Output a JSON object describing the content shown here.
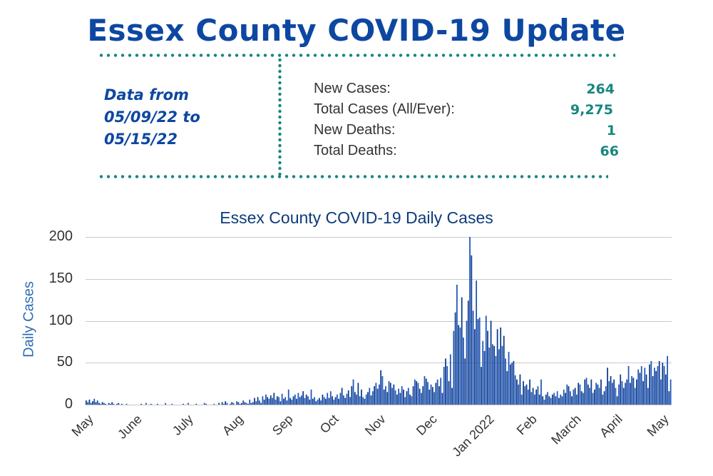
{
  "header": {
    "title": "Essex County COVID-19 Update"
  },
  "date_range": {
    "line1": "Data from",
    "line2": "05/09/22 to",
    "line3": "05/15/22"
  },
  "stats": [
    {
      "label": "New Cases:",
      "value": "264"
    },
    {
      "label": "Total Cases (All/Ever):",
      "value": "9,275"
    },
    {
      "label": "New Deaths:",
      "value": "1"
    },
    {
      "label": "Total Deaths:",
      "value": "66"
    }
  ],
  "colors": {
    "title": "#0d47a1",
    "accent": "#17877f",
    "bar": "#1f56b8",
    "bar_dark": "#0d3b8c"
  },
  "chart_data": {
    "type": "bar",
    "title": "Essex County COVID-19 Daily Cases",
    "xlabel": "",
    "ylabel": "Daily Cases",
    "ylim": [
      0,
      200
    ],
    "yticks": [
      0,
      50,
      100,
      150,
      200
    ],
    "grid": true,
    "legend": null,
    "xtick_labels": [
      "May",
      "June",
      "July",
      "Aug",
      "Sep",
      "Oct",
      "Nov",
      "Dec",
      "Jan 2022",
      "Feb",
      "March",
      "April",
      "May"
    ],
    "x_start": "2021-05-01",
    "x_end": "2022-05-15",
    "values": [
      5,
      3,
      6,
      2,
      4,
      7,
      3,
      5,
      2,
      1,
      3,
      2,
      1,
      0,
      2,
      1,
      3,
      1,
      0,
      1,
      2,
      0,
      1,
      0,
      0,
      1,
      0,
      0,
      0,
      0,
      0,
      0,
      0,
      0,
      1,
      0,
      0,
      2,
      0,
      0,
      1,
      0,
      0,
      0,
      1,
      0,
      0,
      0,
      0,
      2,
      0,
      0,
      0,
      1,
      0,
      0,
      0,
      0,
      0,
      0,
      1,
      0,
      0,
      2,
      0,
      0,
      0,
      0,
      1,
      0,
      0,
      0,
      0,
      2,
      1,
      0,
      0,
      0,
      0,
      1,
      0,
      0,
      2,
      0,
      3,
      1,
      4,
      2,
      0,
      1,
      3,
      2,
      0,
      4,
      3,
      1,
      2,
      5,
      3,
      2,
      1,
      6,
      2,
      3,
      8,
      4,
      9,
      5,
      2,
      10,
      6,
      12,
      9,
      7,
      11,
      8,
      14,
      6,
      10,
      9,
      4,
      13,
      7,
      9,
      5,
      18,
      8,
      6,
      10,
      12,
      7,
      14,
      9,
      11,
      16,
      8,
      12,
      10,
      6,
      18,
      7,
      9,
      4,
      6,
      8,
      5,
      12,
      9,
      7,
      14,
      8,
      16,
      10,
      6,
      9,
      12,
      7,
      14,
      20,
      11,
      8,
      13,
      17,
      9,
      22,
      30,
      15,
      12,
      26,
      10,
      18,
      9,
      7,
      12,
      15,
      20,
      11,
      16,
      22,
      26,
      19,
      24,
      41,
      34,
      18,
      22,
      15,
      28,
      26,
      20,
      24,
      17,
      12,
      19,
      14,
      22,
      18,
      9,
      16,
      20,
      12,
      10,
      22,
      30,
      28,
      26,
      19,
      14,
      22,
      34,
      31,
      27,
      18,
      24,
      21,
      15,
      26,
      30,
      22,
      32,
      14,
      45,
      55,
      46,
      28,
      60,
      20,
      88,
      110,
      143,
      95,
      92,
      128,
      80,
      55,
      100,
      124,
      200,
      178,
      112,
      90,
      148,
      102,
      104,
      45,
      76,
      64,
      106,
      88,
      68,
      100,
      72,
      70,
      58,
      90,
      66,
      92,
      70,
      82,
      55,
      40,
      63,
      48,
      50,
      52,
      35,
      30,
      24,
      36,
      12,
      28,
      22,
      24,
      18,
      30,
      15,
      20,
      12,
      18,
      22,
      12,
      30,
      10,
      6,
      12,
      15,
      10,
      8,
      12,
      14,
      10,
      16,
      8,
      12,
      10,
      18,
      14,
      24,
      22,
      16,
      10,
      18,
      20,
      12,
      26,
      24,
      16,
      14,
      30,
      32,
      24,
      20,
      30,
      14,
      18,
      26,
      24,
      20,
      30,
      12,
      16,
      22,
      44,
      28,
      34,
      26,
      30,
      20,
      10,
      24,
      36,
      28,
      20,
      26,
      30,
      46,
      26,
      34,
      32,
      20,
      30,
      42,
      38,
      46,
      28,
      44,
      36,
      20,
      48,
      52,
      34,
      44,
      40,
      46,
      52,
      30,
      50,
      46,
      36,
      58,
      16,
      30
    ],
    "annotations": []
  }
}
